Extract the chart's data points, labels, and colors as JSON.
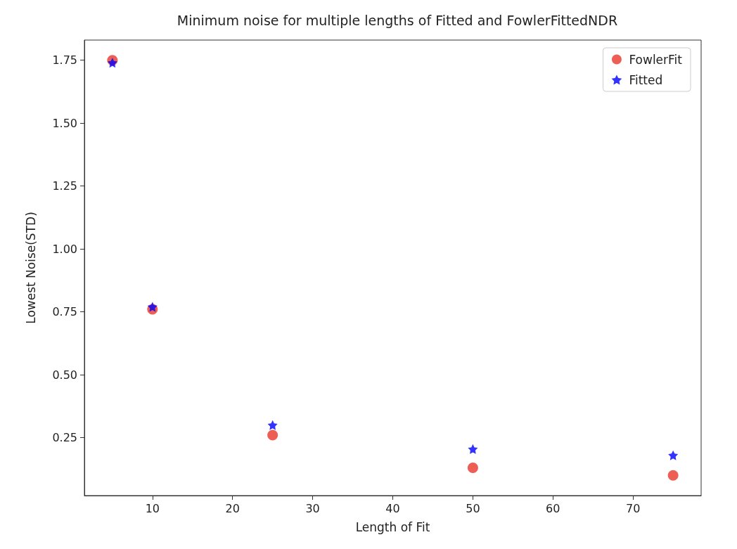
{
  "chart_data": {
    "type": "scatter",
    "title": "Minimum noise for multiple lengths of Fitted and FowlerFittedNDR",
    "xlabel": "Length of Fit",
    "ylabel": "Lowest Noise(STD)",
    "x": [
      5,
      10,
      25,
      50,
      75
    ],
    "series": [
      {
        "name": "FowlerFit",
        "color": "#e8372a",
        "marker": "circle",
        "values": [
          1.75,
          0.76,
          0.26,
          0.13,
          0.1
        ]
      },
      {
        "name": "Fitted",
        "color": "#0000ff",
        "marker": "star",
        "values": [
          1.74,
          0.77,
          0.3,
          0.205,
          0.18
        ]
      }
    ],
    "xlim": [
      1.5,
      78.5
    ],
    "xticks": [
      10,
      20,
      30,
      40,
      50,
      60,
      70
    ],
    "ylim": [
      0.02,
      1.83
    ],
    "yticks": [
      {
        "value": 0.25,
        "label": "0.25"
      },
      {
        "value": 0.5,
        "label": "0.50"
      },
      {
        "value": 0.75,
        "label": "0.75"
      },
      {
        "value": 1,
        "label": "1.00"
      },
      {
        "value": 1.25,
        "label": "1.25"
      },
      {
        "value": 1.5,
        "label": "1.50"
      },
      {
        "value": 1.75,
        "label": "1.75"
      }
    ],
    "legend": "top right",
    "grid": false
  }
}
